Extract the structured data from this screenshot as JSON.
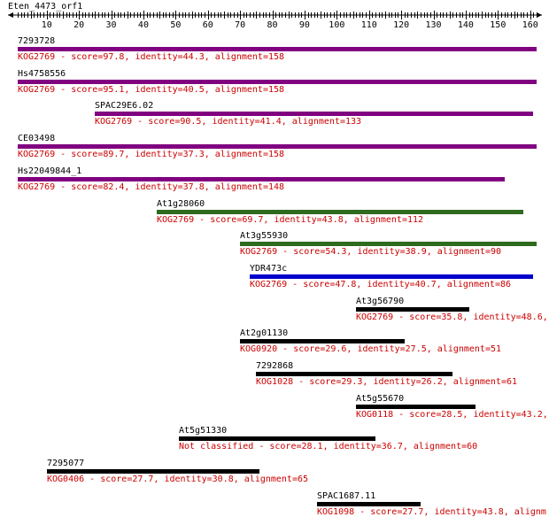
{
  "query": {
    "title": "Eten_4473_orf1"
  },
  "ruler": {
    "min": 1,
    "max": 162,
    "labels": [
      10,
      20,
      30,
      40,
      50,
      60,
      70,
      80,
      90,
      100,
      110,
      120,
      130,
      140,
      150,
      160
    ]
  },
  "colors": {
    "purple": "#800080",
    "green": "#2e6b1e",
    "blue": "#0000cc",
    "black": "#000000",
    "desc_text": "#cc0000"
  },
  "hits": [
    {
      "name": "7293728",
      "start": 1,
      "end": 162,
      "color": "purple",
      "kog": "KOG2769",
      "rest": " - score=97.8, identity=44.3, alignment=158"
    },
    {
      "name": "Hs4758556",
      "start": 1,
      "end": 162,
      "color": "purple",
      "kog": "KOG2769",
      "rest": " - score=95.1, identity=40.5, alignment=158"
    },
    {
      "name": "SPAC29E6.02",
      "start": 25,
      "end": 161,
      "color": "purple",
      "kog": "KOG2769",
      "rest": " - score=90.5, identity=41.4, alignment=133"
    },
    {
      "name": "CE03498",
      "start": 1,
      "end": 162,
      "color": "purple",
      "kog": "KOG2769",
      "rest": " - score=89.7, identity=37.3, alignment=158"
    },
    {
      "name": "Hs22049844_1",
      "start": 1,
      "end": 152,
      "color": "purple",
      "kog": "KOG2769",
      "rest": " - score=82.4, identity=37.8, alignment=148"
    },
    {
      "name": "At1g28060",
      "start": 44,
      "end": 158,
      "color": "green",
      "kog": "KOG2769",
      "rest": " - score=69.7, identity=43.8, alignment=112"
    },
    {
      "name": "At3g55930",
      "start": 70,
      "end": 162,
      "color": "green",
      "kog": "KOG2769",
      "rest": " - score=54.3, identity=38.9, alignment=90"
    },
    {
      "name": "YDR473c",
      "start": 73,
      "end": 161,
      "color": "blue",
      "kog": "KOG2769",
      "rest": " - score=47.8, identity=40.7, alignment=86"
    },
    {
      "name": "At3g56790",
      "start": 106,
      "end": 141,
      "color": "black",
      "kog": "KOG2769",
      "rest": " - score=35.8, identity=48.6,"
    },
    {
      "name": "At2g01130",
      "start": 70,
      "end": 121,
      "color": "black",
      "kog": "KOG0920",
      "rest": " - score=29.6, identity=27.5, alignment=51"
    },
    {
      "name": "7292868",
      "start": 75,
      "end": 136,
      "color": "black",
      "kog": "KOG1028",
      "rest": " - score=29.3, identity=26.2, alignment=61"
    },
    {
      "name": "At5g55670",
      "start": 106,
      "end": 143,
      "color": "black",
      "kog": "KOG0118",
      "rest": " - score=28.5, identity=43.2,"
    },
    {
      "name": "At5g51330",
      "start": 51,
      "end": 112,
      "color": "black",
      "kog": "Not classified",
      "rest": " - score=28.1, identity=36.7, alignment=60"
    },
    {
      "name": "7295077",
      "start": 10,
      "end": 76,
      "color": "black",
      "kog": "KOG0406",
      "rest": " - score=27.7, identity=30.8, alignment=65"
    },
    {
      "name": "SPAC1687.11",
      "start": 94,
      "end": 126,
      "color": "black",
      "kog": "KOG1098",
      "rest": " - score=27.7, identity=43.8, alignm"
    }
  ]
}
